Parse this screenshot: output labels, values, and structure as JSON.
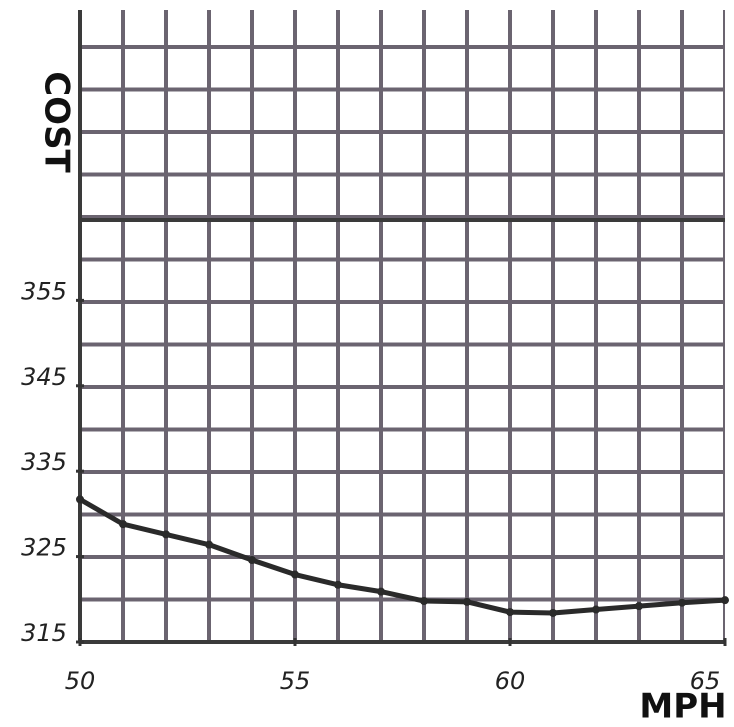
{
  "chart_data": {
    "type": "line",
    "x_label": "MPH",
    "y_label": "COST",
    "x": [
      50,
      51,
      52,
      53,
      54,
      55,
      56,
      57,
      58,
      59,
      60,
      61,
      62,
      63,
      64,
      65
    ],
    "series": [
      {
        "color": "#2a2a2a",
        "values": [
          331.7,
          328.8,
          327.6,
          326.4,
          324.6,
          322.9,
          321.7,
          320.9,
          319.8,
          319.7,
          318.5,
          318.4,
          318.8,
          319.2,
          319.6,
          319.9
        ]
      }
    ],
    "xlim": [
      50,
      65
    ],
    "xticks": [
      50,
      55,
      60,
      65
    ],
    "ylim": [
      315,
      389
    ],
    "yticks": [
      315,
      325,
      335,
      345,
      355
    ],
    "grid": true
  }
}
